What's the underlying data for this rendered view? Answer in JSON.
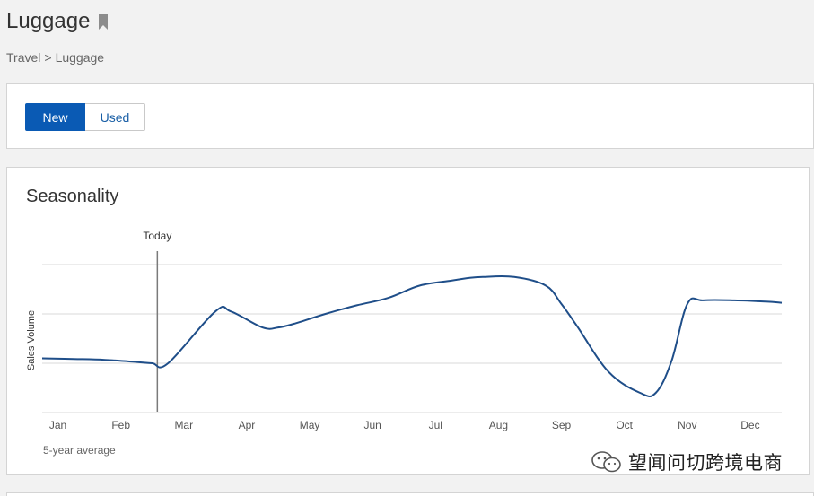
{
  "page": {
    "title": "Luggage"
  },
  "breadcrumb": {
    "items": [
      "Travel",
      "Luggage"
    ],
    "separator": ">"
  },
  "condition_toggle": {
    "options": [
      {
        "label": "New",
        "active": true
      },
      {
        "label": "Used",
        "active": false
      }
    ]
  },
  "seasonality": {
    "title": "Seasonality",
    "footnote": "5-year average"
  },
  "chart_data": {
    "type": "line",
    "title": "Seasonality",
    "ylabel": "Sales Volume",
    "xlabel": "",
    "categories": [
      "Jan",
      "Feb",
      "Mar",
      "Apr",
      "May",
      "Jun",
      "Jul",
      "Aug",
      "Sep",
      "Oct",
      "Nov",
      "Dec"
    ],
    "x": [
      0,
      0.5,
      1,
      1.5,
      1.75,
      2,
      2.75,
      3,
      3.5,
      3.75,
      4,
      4.5,
      5,
      5.5,
      6,
      6.5,
      6.75,
      7,
      7.5,
      8,
      8.25,
      8.5,
      9,
      9.5,
      9.75,
      10,
      10.25,
      10.5,
      11,
      11.5,
      11.75
    ],
    "values": [
      44,
      43.5,
      42.8,
      41,
      40,
      40,
      82,
      82,
      69,
      69,
      72,
      80,
      87,
      93,
      103,
      107,
      109,
      110,
      110,
      103,
      88,
      70,
      33,
      16,
      16,
      42,
      88,
      91,
      91,
      90,
      89
    ],
    "ylim": [
      0,
      120
    ],
    "grid": true,
    "markers": [
      {
        "label": "Today",
        "x": 1.83
      }
    ],
    "line_color": "#1f4e89"
  },
  "watermark": {
    "text": "望闻问切跨境电商",
    "icon": "wechat-icon"
  }
}
